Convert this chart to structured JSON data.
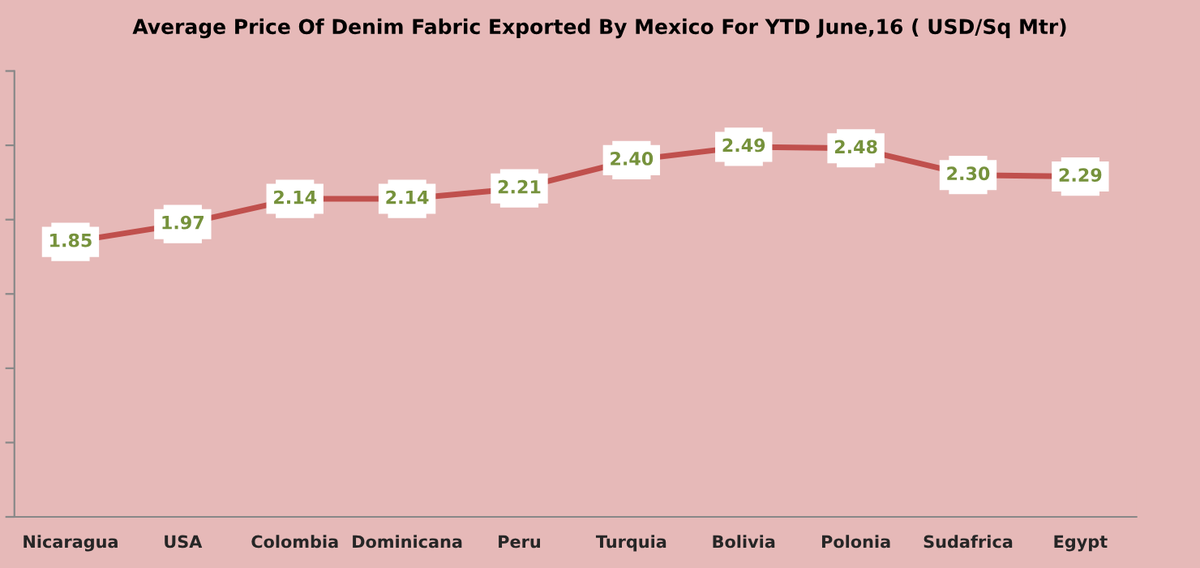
{
  "chart_data": {
    "type": "line",
    "title": "Average Price Of Denim Fabric Exported By Mexico For YTD June,16 ( USD/Sq Mtr)",
    "categories": [
      "Nicaragua",
      "USA",
      "Colombia",
      "Dominicana",
      "Peru",
      "Turquia",
      "Bolivia",
      "Polonia",
      "Sudafrica",
      "Egypt"
    ],
    "series": [
      {
        "color": "#c0504d",
        "values": [
          1.85,
          1.97,
          2.14,
          2.14,
          2.21,
          2.4,
          2.49,
          2.48,
          2.3,
          2.29
        ],
        "value_labels": [
          "1.85",
          "1.97",
          "2.14",
          "2.14",
          "2.21",
          "2.40",
          "2.49",
          "2.48",
          "2.30",
          "2.29"
        ]
      }
    ],
    "ylim": [
      0,
      3
    ],
    "yticks": [
      {
        "value": 0,
        "label": null
      },
      {
        "value": 0.5,
        "label": null
      },
      {
        "value": 1,
        "label": null
      },
      {
        "value": 1.5,
        "label": null
      },
      {
        "value": 2,
        "label": null
      },
      {
        "value": 2.5,
        "label": null
      },
      {
        "value": 3,
        "label": null
      }
    ],
    "tick_labels": "x",
    "marker": "square",
    "grid": false,
    "legend": false,
    "line_style": "solid"
  }
}
